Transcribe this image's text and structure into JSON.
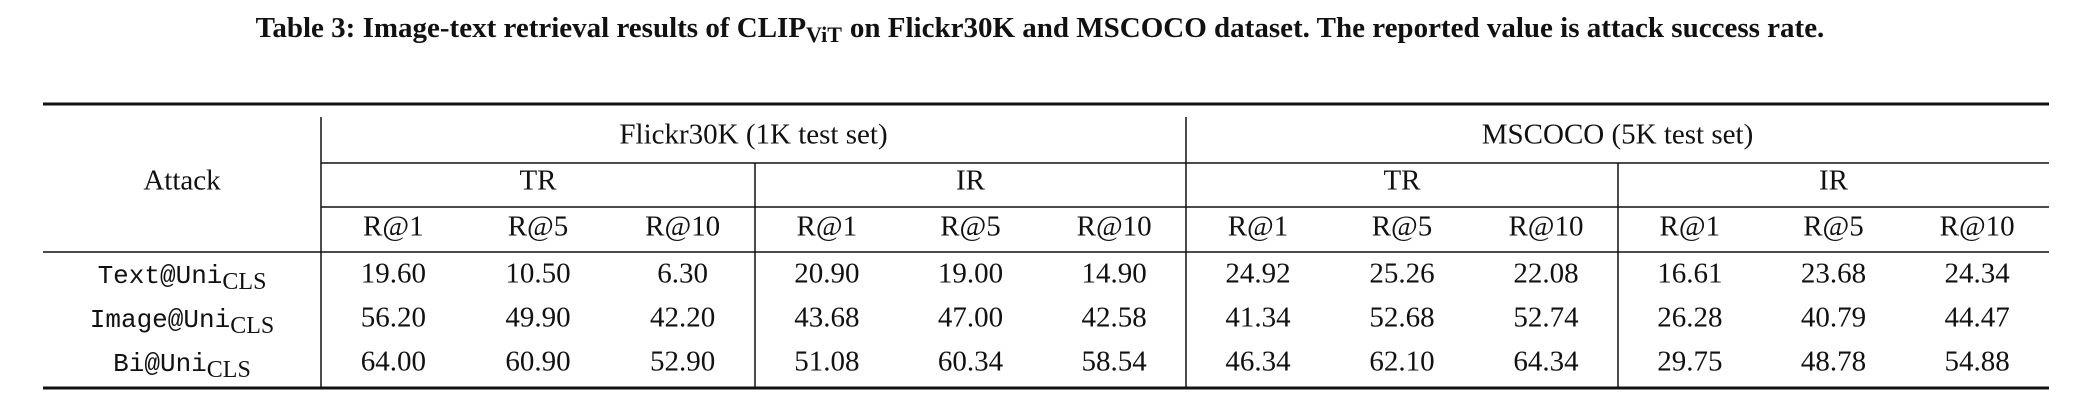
{
  "title": {
    "main": "Table 3: Image-text retrieval results of CLIP",
    "sub": "ViT",
    "rest": "on Flickr30K and MSCOCO dataset. The reported value is attack success rate."
  },
  "table": {
    "corner": "Attack",
    "datasets": [
      "Flickr30K (1K test set)",
      "MSCOCO (5K test set)"
    ],
    "tasks": [
      "TR",
      "IR",
      "TR",
      "IR"
    ],
    "metrics": [
      "R@1",
      "R@5",
      "R@10",
      "R@1",
      "R@5",
      "R@10",
      "R@1",
      "R@5",
      "R@10",
      "R@1",
      "R@5",
      "R@10"
    ],
    "rows": [
      {
        "name": "Text@Uni",
        "sub": "CLS",
        "values": [
          "19.60",
          "10.50",
          "6.30",
          "20.90",
          "19.00",
          "14.90",
          "24.92",
          "25.26",
          "22.08",
          "16.61",
          "23.68",
          "24.34"
        ]
      },
      {
        "name": "Image@Uni",
        "sub": "CLS",
        "values": [
          "56.20",
          "49.90",
          "42.20",
          "43.68",
          "47.00",
          "42.58",
          "41.34",
          "52.68",
          "52.74",
          "26.28",
          "40.79",
          "44.47"
        ]
      },
      {
        "name": "Bi@Uni",
        "sub": "CLS",
        "values": [
          "64.00",
          "60.90",
          "52.90",
          "51.08",
          "60.34",
          "58.54",
          "46.34",
          "62.10",
          "64.34",
          "29.75",
          "48.78",
          "54.88"
        ]
      }
    ]
  }
}
